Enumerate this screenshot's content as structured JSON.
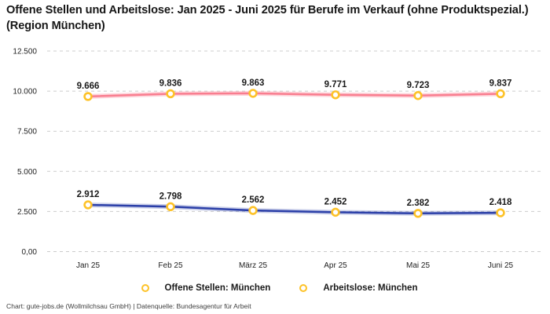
{
  "title": "Offene Stellen und Arbeitslose: Jan 2025 - Juni 2025 für Berufe im Verkauf (ohne Produktspezial.) (Region München)",
  "footer": "Chart: gute-jobs.de (Wollmilchsau GmbH) | Datenquelle: Bundesagentur für Arbeit",
  "colors": {
    "open_positions_line": "#2b3fa8",
    "unemployed_line": "#f97d8f",
    "marker_ring": "#fdc228",
    "grid": "#cccccc",
    "text_dark": "#1a1a1a",
    "tick_text": "#222222"
  },
  "chart_data": {
    "type": "line",
    "title": "Offene Stellen und Arbeitslose: Jan 2025 - Juni 2025 für Berufe im Verkauf (ohne Produktspezial.) (Region München)",
    "categories": [
      "Jan 25",
      "Feb 25",
      "März 25",
      "Apr 25",
      "Mai 25",
      "Juni 25"
    ],
    "series": [
      {
        "name": "Offene Stellen: München",
        "values": [
          2912,
          2798,
          2562,
          2452,
          2382,
          2418
        ],
        "labels": [
          "2.912",
          "2.798",
          "2.562",
          "2.452",
          "2.382",
          "2.418"
        ],
        "color": "#2b3fa8",
        "glow": "rgba(43,63,168,0.25)"
      },
      {
        "name": "Arbeitslose: München",
        "values": [
          9666,
          9836,
          9863,
          9771,
          9723,
          9837
        ],
        "labels": [
          "9.666",
          "9.836",
          "9.863",
          "9.771",
          "9.723",
          "9.837"
        ],
        "color": "#f97d8f",
        "glow": "rgba(249,125,143,0.32)"
      }
    ],
    "y_ticks": [
      {
        "value": 0,
        "label": "0,00"
      },
      {
        "value": 2500,
        "label": "2.500"
      },
      {
        "value": 5000,
        "label": "5.000"
      },
      {
        "value": 7500,
        "label": "7.500"
      },
      {
        "value": 10000,
        "label": "10.000"
      },
      {
        "value": 12500,
        "label": "12.500"
      }
    ],
    "ylim": [
      0,
      12500
    ],
    "grid": "horizontal-dashed",
    "legend_position": "bottom",
    "marker": "gold-ring-circle",
    "data_labels": true
  }
}
